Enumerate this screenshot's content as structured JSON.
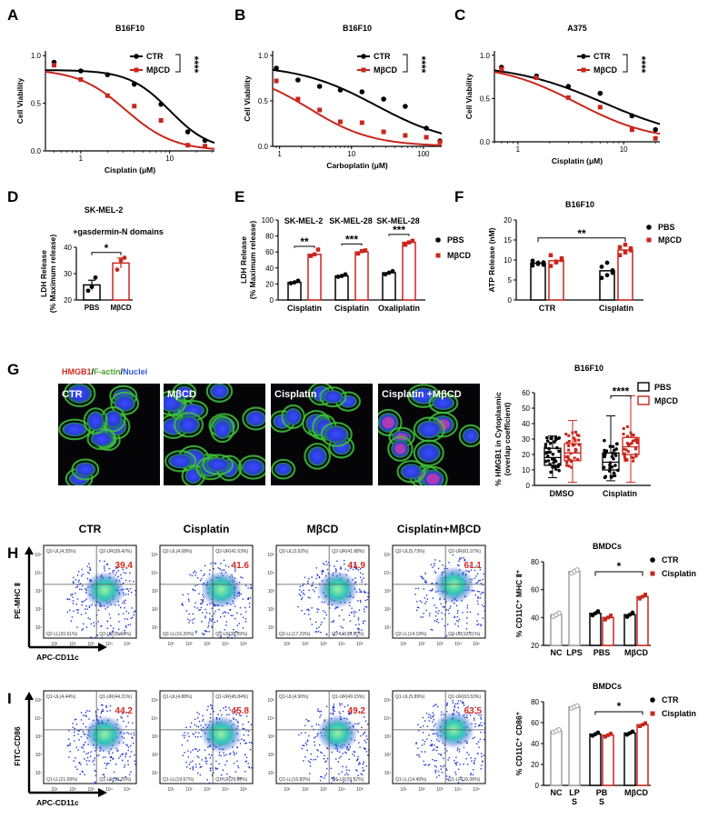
{
  "colors": {
    "ctr": "#000000",
    "mbcd": "#c8261d",
    "pbs": "#000000",
    "grey": "#a0a0a0",
    "flow": "#1a33d6",
    "flow_core": "#34c8a0"
  },
  "panel_labels": [
    "A",
    "B",
    "C",
    "D",
    "E",
    "F",
    "G",
    "H",
    "I"
  ],
  "chart_data": [
    {
      "id": "A",
      "type": "line",
      "title": "B16F10",
      "xlabel": "Cisplatin (μM)",
      "ylabel": "Cell Viability",
      "xscale": "log",
      "xlim": [
        0.4,
        32
      ],
      "ylim": [
        0,
        1.05
      ],
      "xticks": [
        "1",
        "10"
      ],
      "yticks": [
        "0.0",
        "0.5",
        "1.0"
      ],
      "legend": [
        "CTR",
        "MβCD"
      ],
      "significance": "****",
      "series": [
        {
          "name": "CTR",
          "x": [
            0.5,
            1,
            2,
            4,
            8,
            16,
            25
          ],
          "y": [
            0.93,
            0.84,
            0.8,
            0.7,
            0.49,
            0.2,
            0.11
          ],
          "fit": {
            "top": 0.85,
            "ic50": 10,
            "hill": 1.9
          }
        },
        {
          "name": "MβCD",
          "x": [
            0.5,
            1,
            2,
            4,
            8,
            16,
            25
          ],
          "y": [
            0.9,
            0.75,
            0.58,
            0.47,
            0.32,
            0.06,
            0.05
          ],
          "fit": {
            "top": 0.86,
            "ic50": 3.2,
            "hill": 1.6
          }
        }
      ]
    },
    {
      "id": "B",
      "type": "line",
      "title": "B16F10",
      "xlabel": "Carboplatin (μM)",
      "ylabel": "Cell Viability",
      "xscale": "log",
      "xlim": [
        0.8,
        180
      ],
      "ylim": [
        0,
        1.05
      ],
      "xticks": [
        "1",
        "10",
        "100"
      ],
      "yticks": [
        "0.0",
        "0.5",
        "1.0"
      ],
      "legend": [
        "CTR",
        "MβCD"
      ],
      "significance": "****",
      "series": [
        {
          "name": "CTR",
          "x": [
            0.9,
            1.8,
            3.6,
            7,
            14,
            28,
            56,
            110,
            170
          ],
          "y": [
            0.86,
            0.73,
            0.66,
            0.62,
            0.6,
            0.52,
            0.44,
            0.2,
            0.06
          ],
          "fit": {
            "top": 0.9,
            "ic50": 22,
            "hill": 0.8
          }
        },
        {
          "name": "MβCD",
          "x": [
            0.9,
            1.8,
            3.6,
            7,
            14,
            28,
            56,
            110,
            170
          ],
          "y": [
            0.72,
            0.52,
            0.4,
            0.27,
            0.26,
            0.16,
            0.12,
            0.1,
            0.05
          ],
          "fit": {
            "top": 0.83,
            "ic50": 2.6,
            "hill": 1.0
          }
        }
      ]
    },
    {
      "id": "C",
      "type": "line",
      "title": "A375",
      "xlabel": "Cisplatin (μM)",
      "ylabel": "Cell Viability",
      "xscale": "log",
      "xlim": [
        0.6,
        22
      ],
      "ylim": [
        0,
        1.05
      ],
      "xticks": [
        "1",
        "10"
      ],
      "yticks": [
        "0.0",
        "0.5",
        "1.0"
      ],
      "legend": [
        "CTR",
        "MβCD"
      ],
      "significance": "****",
      "series": [
        {
          "name": "CTR",
          "x": [
            0.7,
            1.5,
            3,
            6,
            12,
            20
          ],
          "y": [
            0.86,
            0.76,
            0.64,
            0.56,
            0.3,
            0.14
          ],
          "fit": {
            "top": 0.9,
            "ic50": 6.5,
            "hill": 1.0
          }
        },
        {
          "name": "MβCD",
          "x": [
            0.7,
            1.5,
            3,
            6,
            12,
            20
          ],
          "y": [
            0.84,
            0.74,
            0.51,
            0.4,
            0.14,
            0.04
          ],
          "fit": {
            "top": 0.9,
            "ic50": 3.6,
            "hill": 1.2
          }
        }
      ]
    },
    {
      "id": "D",
      "type": "bar",
      "title": "SK-MEL-2",
      "subtitle": "+gasdermin-N domains",
      "ylabel": "LDH Release\n(% Maximum release)",
      "categories": [
        "PBS",
        "MβCD"
      ],
      "ylim": [
        20,
        40
      ],
      "yticks": [
        "20",
        "30",
        "40"
      ],
      "values": [
        25.7,
        34.0
      ],
      "sem": [
        1.8,
        1.9
      ],
      "points": [
        [
          23.5,
          25.0,
          28.5
        ],
        [
          31.5,
          35.0,
          36.0
        ]
      ],
      "significance": "*"
    },
    {
      "id": "E",
      "type": "bar",
      "ylabel": "LDH Release\n(% Maximum release)",
      "groups": [
        "SK-MEL-2",
        "SK-MEL-28",
        "SK-MEL-28"
      ],
      "categories": [
        "Cisplatin",
        "Cisplatin",
        "Oxaliplatin"
      ],
      "ylim": [
        0,
        100
      ],
      "yticks": [
        "0",
        "20",
        "40",
        "60",
        "80",
        "100"
      ],
      "legend": [
        "PBS",
        "MβCD"
      ],
      "significance": [
        "**",
        "***",
        "***"
      ],
      "series": [
        {
          "name": "PBS",
          "values": [
            22,
            30,
            34
          ]
        },
        {
          "name": "MβCD",
          "values": [
            57,
            60,
            72
          ]
        }
      ],
      "points": [
        [
          [
            21,
            22,
            24
          ],
          [
            55,
            57,
            63
          ]
        ],
        [
          [
            29,
            30,
            32
          ],
          [
            58,
            61,
            62
          ]
        ],
        [
          [
            32,
            34,
            36
          ],
          [
            69,
            72,
            74
          ]
        ]
      ]
    },
    {
      "id": "F",
      "type": "bar",
      "title": "B16F10",
      "ylabel": "ATP Release (nM)",
      "categories": [
        "CTR",
        "Cisplatin"
      ],
      "ylim": [
        0,
        20
      ],
      "yticks": [
        "0",
        "5",
        "10",
        "15",
        "20"
      ],
      "legend": [
        "PBS",
        "MβCD"
      ],
      "significance": "**",
      "series": [
        {
          "name": "PBS",
          "values": [
            9.2,
            7.3
          ]
        },
        {
          "name": "MβCD",
          "values": [
            9.8,
            12.5
          ]
        }
      ],
      "points": [
        [
          [
            8.6,
            9.0,
            9.4,
            9.8,
            9.3,
            8.8
          ],
          [
            5.5,
            6.2,
            7.4,
            8.3,
            9.3,
            6.8
          ]
        ],
        [
          [
            8.5,
            9.4,
            10.0,
            11.2,
            9.6,
            10.4
          ],
          [
            11.2,
            11.9,
            12.4,
            13.2,
            13.8,
            12.9
          ]
        ]
      ]
    },
    {
      "id": "G",
      "type": "bar",
      "title": "B16F10",
      "ylabel": "% HMGB1 in Cytoplasmic\n(overlap coefficient)",
      "categories": [
        "DMSO",
        "Cisplatin"
      ],
      "ylim": [
        0,
        60
      ],
      "yticks": [
        "0",
        "10",
        "20",
        "30",
        "40",
        "50",
        "60"
      ],
      "legend": [
        "PBS",
        "MβCD"
      ],
      "significance": "****",
      "series": [
        {
          "name": "PBS",
          "values": [
            18,
            15
          ]
        },
        {
          "name": "MβCD",
          "values": [
            21,
            25
          ]
        }
      ],
      "range": [
        [
          [
            5,
            32
          ],
          [
            2,
            42
          ]
        ],
        [
          [
            3,
            45
          ],
          [
            2,
            58
          ]
        ]
      ]
    },
    {
      "id": "H",
      "type": "bar",
      "title": "BMDCs",
      "ylabel": "% CD11C⁺ MHC Ⅱ⁺",
      "categories": [
        "NC",
        "LPS",
        "PBS",
        "MβCD"
      ],
      "ylim": [
        20,
        80
      ],
      "yticks": [
        "20",
        "40",
        "60",
        "80"
      ],
      "legend": [
        "CTR",
        "Cisplatin"
      ],
      "significance": "*",
      "values": {
        "NC": 42,
        "LPS": 73,
        "PBS": [
          43,
          40
        ],
        "MβCD": [
          42,
          55
        ]
      }
    },
    {
      "id": "I",
      "type": "bar",
      "title": "BMDCs",
      "ylabel": "% CD11C⁺ CD86⁺",
      "categories": [
        "NC",
        "LPS",
        "PBS",
        "MβCD"
      ],
      "xticklabels": [
        "NC",
        "LP\nS",
        "PB\nS",
        "MβCD"
      ],
      "ylim": [
        0,
        80
      ],
      "yticks": [
        "0",
        "20",
        "40",
        "60",
        "80"
      ],
      "legend": [
        "CTR",
        "Cisplatin"
      ],
      "significance": "*",
      "values": {
        "NC": 52,
        "LPS": 75,
        "PBS": [
          49,
          48
        ],
        "MβCD": [
          50,
          58
        ]
      }
    }
  ],
  "microscopy": {
    "legend_parts": [
      {
        "text": "HMGB1",
        "color": "#d42a1e"
      },
      {
        "text": "/",
        "color": "#000000"
      },
      {
        "text": "F-actin",
        "color": "#4aa02c"
      },
      {
        "text": "/",
        "color": "#000000"
      },
      {
        "text": "Nuclei",
        "color": "#2a58d6"
      }
    ],
    "images": [
      "CTR",
      "MβCD",
      "Cisplatin",
      "Cisplatin +MβCD"
    ]
  },
  "flow_H": {
    "ylabel": "PE-MHC Ⅱ",
    "xlabel": "APC-CD11c",
    "plots": [
      {
        "title": "CTR",
        "value": "39.4",
        "quads": [
          "Q2-UL(4.35%)",
          "Q2-UR(39.42%)",
          "Q2-LL(20.61%)",
          "Q2-LR(35.62%)"
        ]
      },
      {
        "title": "Cisplatin",
        "value": "41.6",
        "quads": [
          "Q2-UL(4.08%)",
          "Q2-UR(41.63%)",
          "Q2-LL(16.20%)",
          "Q2-LR(38.09%)"
        ]
      },
      {
        "title": "MβCD",
        "value": "41.9",
        "quads": [
          "Q2-UL(3.92%)",
          "Q2-UR(41.88%)",
          "Q2-LL(17.23%)",
          "Q2-LR(36.97%)"
        ]
      },
      {
        "title": "Cisplatin+MβCD",
        "value": "61.1",
        "quads": [
          "Q2-UL(5.73%)",
          "Q2-UR(61.07%)",
          "Q2-LL(14.19%)",
          "Q2-LR(19.01%)"
        ]
      }
    ]
  },
  "flow_I": {
    "ylabel": "FITC-CD86",
    "xlabel": "APC-CD11c",
    "plots": [
      {
        "value": "44.2",
        "quads": [
          "Q1-UL(4.44%)",
          "Q1-UR(44.21%)",
          "Q1-LL(21.09%)",
          "Q1-LR(30.25%)"
        ]
      },
      {
        "value": "45.8",
        "quads": [
          "Q1-UL(4.88%)",
          "Q1-UR(45.84%)",
          "Q1-LL(19.67%)",
          "Q1-LR(29.60%)"
        ]
      },
      {
        "value": "49.2",
        "quads": [
          "Q1-UL(4.90%)",
          "Q1-UR(49.15%)",
          "Q1-LL(16.83%)",
          "Q1-LR(29.12%)"
        ]
      },
      {
        "value": "63.5",
        "quads": [
          "Q1-UL(5.89%)",
          "Q1-UR(63.53%)",
          "Q1-LL(14.49%)",
          "Q1-LR(16.08%)"
        ]
      }
    ]
  },
  "flow_axis_ticks": [
    "10¹",
    "10²",
    "10³",
    "10⁴",
    "10⁵"
  ]
}
